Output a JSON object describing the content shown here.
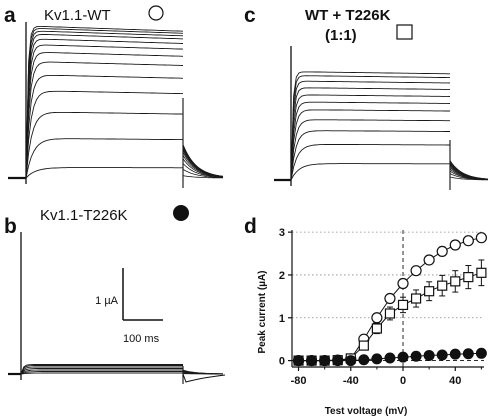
{
  "panels": {
    "a": {
      "letter": "a",
      "title": "Kv1.1-WT",
      "marker": "open-circle"
    },
    "b": {
      "letter": "b",
      "title": "Kv1.1-T226K",
      "marker": "filled-circle"
    },
    "c": {
      "letter": "c",
      "title_line1": "WT + T226K",
      "title_line2": "(1:1)",
      "marker": "open-square"
    },
    "d": {
      "letter": "d"
    }
  },
  "scale_bar": {
    "current_label": "1 µA",
    "time_label": "100 ms"
  },
  "colors": {
    "ink": "#111111",
    "trace": "#1a1a1a",
    "grid": "#888888"
  },
  "trace_data": {
    "wt": [
      0.2,
      0.75,
      1.25,
      1.65,
      1.95,
      2.2,
      2.38,
      2.52,
      2.63,
      2.72,
      2.78,
      2.83,
      2.87
    ],
    "wt_t226k": [
      0.3,
      0.65,
      0.9,
      1.1,
      1.28,
      1.42,
      1.55,
      1.68,
      1.8,
      1.9,
      1.97
    ],
    "t226k": [
      0.02,
      0.05,
      0.08,
      0.11,
      0.14,
      0.17,
      0.19
    ]
  },
  "chart_data": {
    "type": "scatter",
    "xlabel": "Test voltage (mV)",
    "ylabel": "Peak current (µA)",
    "xlim": [
      -85,
      62
    ],
    "ylim": [
      -0.15,
      3.05
    ],
    "xticks": [
      -80,
      -40,
      0,
      40
    ],
    "yticks": [
      0,
      1,
      2,
      3
    ],
    "grid": "dotted horizontal at 1, 2, 3",
    "dashed_vline_at": 0,
    "dashed_hline_at": 0,
    "x": [
      -80,
      -70,
      -60,
      -50,
      -40,
      -30,
      -20,
      -10,
      0,
      10,
      20,
      30,
      40,
      50,
      60
    ],
    "series": [
      {
        "marker": "open-circle",
        "values": [
          0,
          0,
          0,
          0.01,
          0.04,
          0.5,
          1.0,
          1.45,
          1.8,
          2.1,
          2.35,
          2.55,
          2.7,
          2.8,
          2.87
        ],
        "errors": [
          0,
          0,
          0,
          0,
          0.02,
          0.06,
          0.08,
          0.09,
          0.1,
          0.1,
          0.1,
          0.1,
          0.1,
          0.1,
          0.1
        ]
      },
      {
        "marker": "open-square",
        "values": [
          0,
          0,
          0,
          0.01,
          0.05,
          0.35,
          0.75,
          1.1,
          1.3,
          1.45,
          1.62,
          1.75,
          1.85,
          1.95,
          2.05
        ],
        "errors": [
          0,
          0,
          0,
          0,
          0.03,
          0.08,
          0.12,
          0.15,
          0.18,
          0.2,
          0.22,
          0.24,
          0.25,
          0.27,
          0.3
        ]
      },
      {
        "marker": "filled-circle",
        "values": [
          0,
          0,
          0,
          0,
          0,
          0.02,
          0.04,
          0.06,
          0.08,
          0.1,
          0.12,
          0.13,
          0.15,
          0.16,
          0.17
        ],
        "errors": [
          0,
          0,
          0,
          0,
          0,
          0.01,
          0.01,
          0.01,
          0.01,
          0.02,
          0.02,
          0.02,
          0.02,
          0.02,
          0.02
        ]
      }
    ]
  }
}
